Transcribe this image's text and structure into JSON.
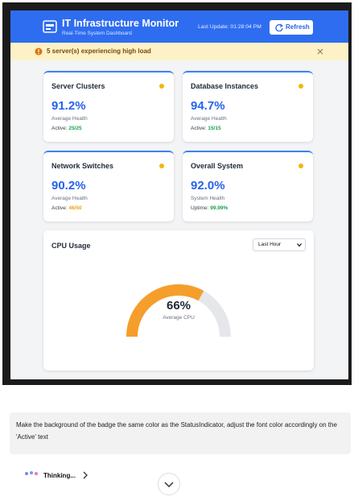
{
  "header": {
    "title": "IT Infrastructure Monitor",
    "subtitle": "Real-Time System Dashboard",
    "last_update": "Last Update: 01:28:04 PM",
    "refresh": "Refresh"
  },
  "alert": {
    "text": "5 server(s) experiencing high load"
  },
  "cards": [
    {
      "title": "Server Clusters",
      "value": "91.2%",
      "caption": "Average Health",
      "status_label": "Active:",
      "status_value": "25/25",
      "status_color": "#16a34a"
    },
    {
      "title": "Database Instances",
      "value": "94.7%",
      "caption": "Average Health",
      "status_label": "Active:",
      "status_value": "15/15",
      "status_color": "#16a34a"
    },
    {
      "title": "Network Switches",
      "value": "90.2%",
      "caption": "Average Health",
      "status_label": "Active:",
      "status_value": "46/50",
      "status_color": "#e8a317"
    },
    {
      "title": "Overall System",
      "value": "92.0%",
      "caption": "System Health",
      "status_label": "Uptime:",
      "status_value": "99.99%",
      "status_color": "#16a34a"
    }
  ],
  "cpu": {
    "title": "CPU Usage",
    "select": "Last Hour",
    "gauge": {
      "value": 66,
      "label": "66%",
      "caption": "Average CPU",
      "color": "#f59e2b"
    }
  },
  "chat": {
    "prompt": "Make the background of the badge the same color as the StatusIndicator, adjust the font color accordingly on the 'Active' text",
    "status": "Thinking..."
  }
}
